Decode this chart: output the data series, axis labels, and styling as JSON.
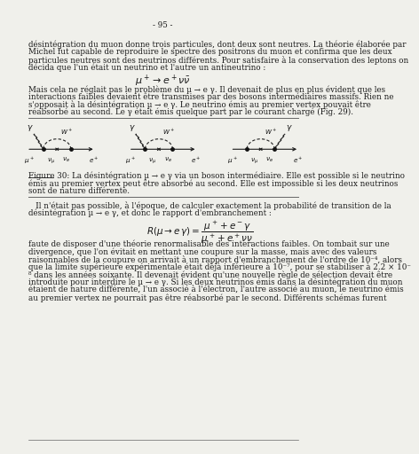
{
  "page_number": "- 95 -",
  "background_color": "#f0f0eb",
  "text_color": "#1a1a1a",
  "para1": "désintégration du muon donne trois particules, dont deux sont neutres. La théorie élaborée par\nMichel fut capable de reproduire le spectre des positrons du muon et confirma que les deux\nparticules neutres sont des neutrinos différents. Pour satisfaire à la conservation des leptons on\ndécida que l'un était un neutrino et l'autre un antineutrino :",
  "para2": "Mais cela ne réglait pas le problème du µ → e γ. Il devenait de plus en plus évident que les\ninteractions faibles devaient être transmises par des bosons intermédiaires massifs. Rien ne\ns'opposait à la désintégration µ → e γ. Le neutrino émis au premier vertex pouvait être\nréabsorbé au second. Le γ était émis quelque part par le courant chargé (Fig. 29).",
  "fig_caption_line1": "Figure 30: La désintégration µ → e γ via un boson intermédiaire. Elle est possible si le neutrino",
  "fig_caption_line2": "émis au premier vertex peut être absorbé au second. Elle est impossible si les deux neutrinos",
  "fig_caption_line3": "sont de nature différente.",
  "para3_line1": "   Il n'était pas possible, à l'époque, de calculer exactement la probabilité de transition de la",
  "para3_line2": "désintégration µ → e γ, et donc le rapport d'embranchement :",
  "para4_lines": [
    "faute de disposer d'une théorie renormalisable des interactions faibles. On tombait sur une",
    "divergence, que l'on évitait en mettant une coupure sur la masse, mais avec des valeurs",
    "raisonnables de la coupure on arrivait à un rapport d'embranchement de l'ordre de 10⁻⁴, alors",
    "que la limite supérieure expérimentale était déjà inférieure à 10⁻⁷, pour se stabiliser à 2.2 × 10⁻",
    "⁸ dans les années soixante. Il devenait évident qu'une nouvelle règle de sélection devait être",
    "introduite pour interdire le µ → e γ. Si les deux neutrinos émis dans la désintégration du muon",
    "étaient de nature différente, l'un associé à l'électron, l'autre associé au muon, le neutrino émis",
    "au premier vertex ne pourrait pas être réabsorbé par le second. Différents schémas furent"
  ]
}
